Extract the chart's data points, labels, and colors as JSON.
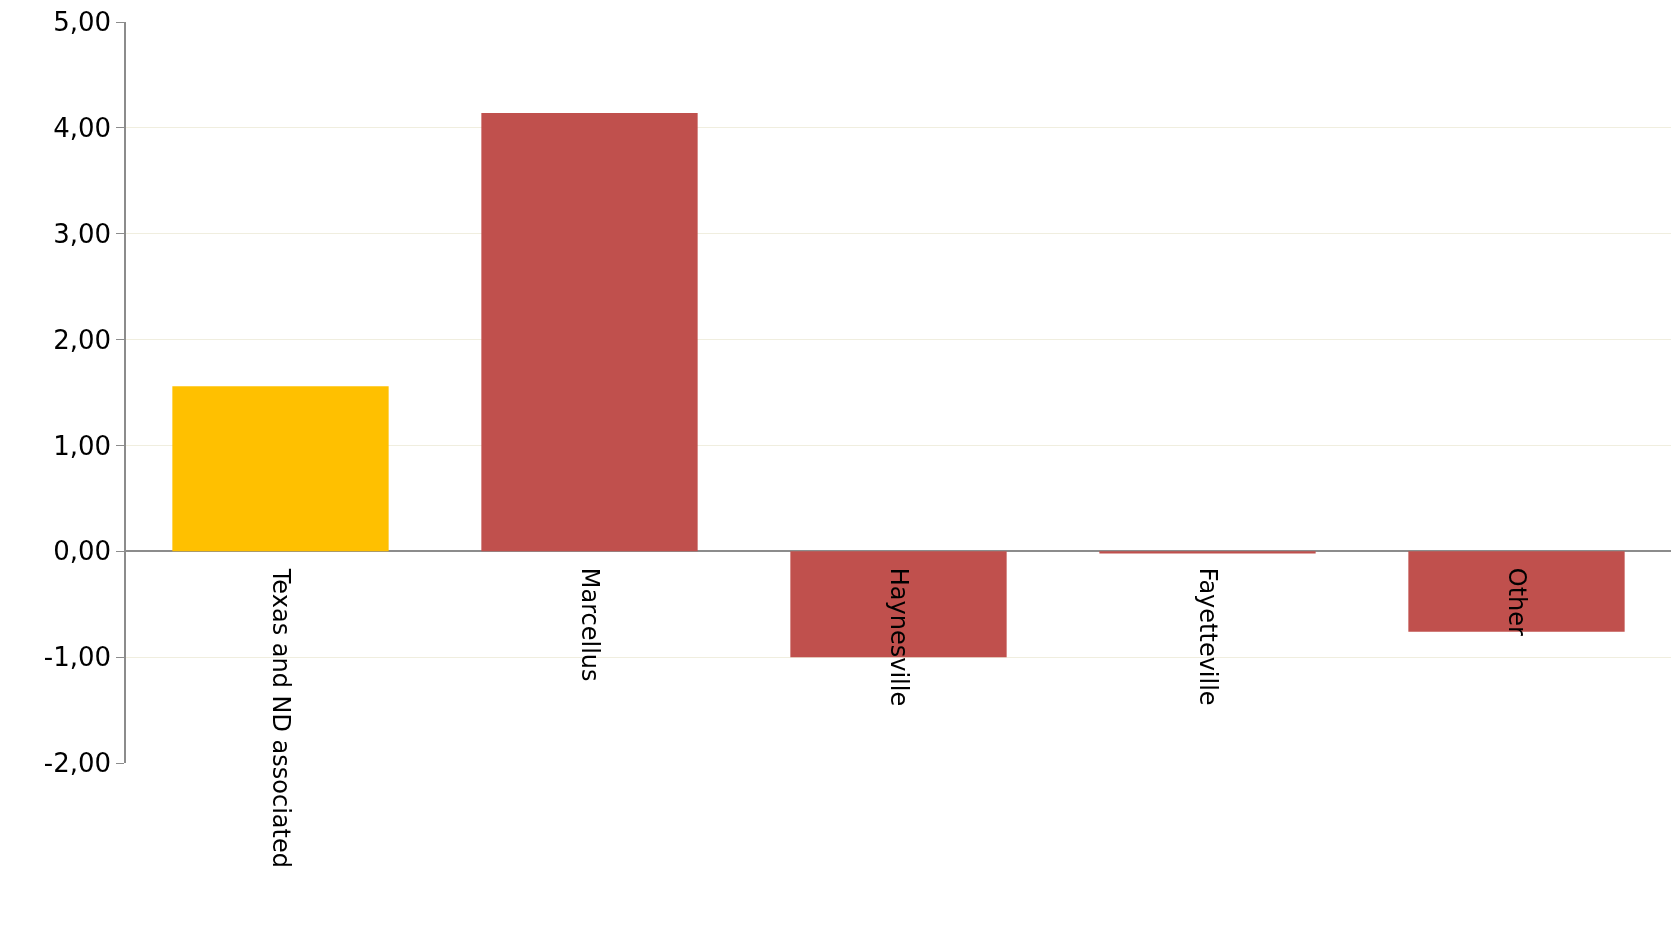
{
  "chart_data": {
    "type": "bar",
    "categories": [
      "Texas and ND associated",
      "Marcellus",
      "Haynesville",
      "Fayetteville",
      "Other"
    ],
    "values": [
      1.56,
      4.14,
      -1.0,
      -0.02,
      -0.76
    ],
    "colors": [
      "#ffc000",
      "#c0504d",
      "#c0504d",
      "#c0504d",
      "#c0504d"
    ],
    "ylim": [
      -2,
      5
    ],
    "yticks": [
      {
        "value": -2,
        "label": "-2,00"
      },
      {
        "value": -1,
        "label": "-1,00"
      },
      {
        "value": 0,
        "label": "0,00"
      },
      {
        "value": 1,
        "label": "1,00"
      },
      {
        "value": 2,
        "label": "2,00"
      },
      {
        "value": 3,
        "label": "3,00"
      },
      {
        "value": 4,
        "label": "4,00"
      },
      {
        "value": 5,
        "label": "5,00"
      }
    ],
    "grid": "y",
    "legend": false
  }
}
